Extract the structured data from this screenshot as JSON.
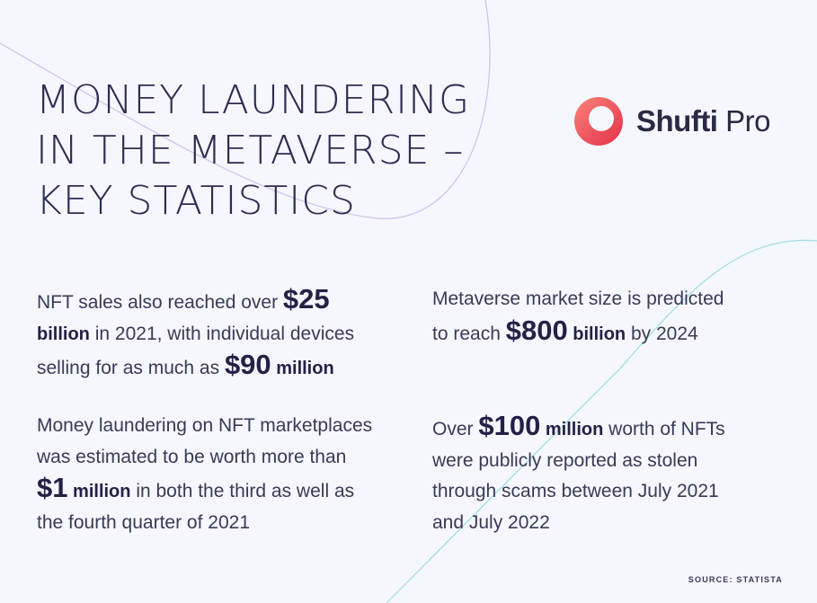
{
  "title": {
    "line1": "MONEY LAUNDERING",
    "line2": "IN THE METAVERSE –",
    "line3": "KEY STATISTICS"
  },
  "logo": {
    "brand_bold": "Shufti",
    "brand_regular": "Pro",
    "icon": "shufti-pro-ring-logo",
    "colors": {
      "gradient_start": "#f9837a",
      "gradient_end": "#e5304b"
    }
  },
  "stats": [
    {
      "lines": [
        [
          {
            "text": "NFT sales also reached over ",
            "style": "normal"
          },
          {
            "text": "$25",
            "style": "big"
          }
        ],
        [
          {
            "text": "billion",
            "style": "unit"
          },
          {
            "text": " in 2021, with individual devices",
            "style": "normal"
          }
        ],
        [
          {
            "text": "selling for as much as ",
            "style": "normal"
          },
          {
            "text": "$90",
            "style": "big"
          },
          {
            "text": " million",
            "style": "unit"
          }
        ]
      ]
    },
    {
      "lines": [
        [
          {
            "text": "Metaverse market size is predicted",
            "style": "normal"
          }
        ],
        [
          {
            "text": "to reach ",
            "style": "normal"
          },
          {
            "text": "$800",
            "style": "big"
          },
          {
            "text": " billion",
            "style": "unit"
          },
          {
            "text": " by 2024",
            "style": "normal"
          }
        ]
      ]
    },
    {
      "lines": [
        [
          {
            "text": "Money laundering on NFT marketplaces",
            "style": "normal"
          }
        ],
        [
          {
            "text": "was estimated to be worth more than",
            "style": "normal"
          }
        ],
        [
          {
            "text": "$1",
            "style": "big"
          },
          {
            "text": " million",
            "style": "unit"
          },
          {
            "text": " in both the third as well as",
            "style": "normal"
          }
        ],
        [
          {
            "text": "the fourth quarter of 2021",
            "style": "normal"
          }
        ]
      ]
    },
    {
      "lines": [
        [
          {
            "text": "Over ",
            "style": "normal"
          },
          {
            "text": "$100",
            "style": "big"
          },
          {
            "text": " million",
            "style": "unit"
          },
          {
            "text": " worth of NFTs",
            "style": "normal"
          }
        ],
        [
          {
            "text": "were publicly reported as stolen",
            "style": "normal"
          }
        ],
        [
          {
            "text": "through scams between July 2021",
            "style": "normal"
          }
        ],
        [
          {
            "text": "and July 2022",
            "style": "normal"
          }
        ]
      ]
    }
  ],
  "source": "SOURCE: STATISTA",
  "colors": {
    "background": "#f4f7fe",
    "heading": "#2e2c50",
    "body_text": "#3a3a55",
    "decor_purple": "#c9c4ec",
    "decor_teal": "#9fdfe0"
  }
}
